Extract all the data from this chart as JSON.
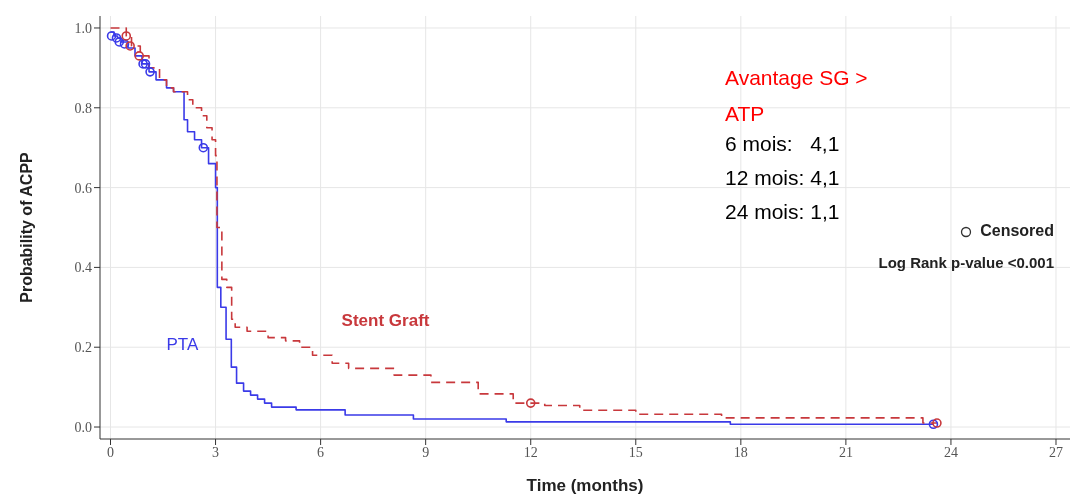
{
  "chart_data": {
    "type": "step",
    "xlabel": "Time (months)",
    "ylabel": "Probability of ACPP",
    "xlim": [
      -0.3,
      27.4
    ],
    "ylim": [
      -0.03,
      1.03
    ],
    "xticks": [
      0,
      3,
      6,
      9,
      12,
      15,
      18,
      21,
      24,
      27
    ],
    "yticks": [
      {
        "value": 0,
        "label": "0.0"
      },
      {
        "value": 0.2,
        "label": "0.2"
      },
      {
        "value": 0.4,
        "label": "0.4"
      },
      {
        "value": 0.6,
        "label": "0.6"
      },
      {
        "value": 0.8,
        "label": "0.8"
      },
      {
        "value": 1,
        "label": "1.0"
      }
    ],
    "grid": true,
    "series": [
      {
        "name": "PTA",
        "color": "#3a3ae8",
        "line_style": "solid",
        "x": [
          0,
          0.1,
          0.2,
          0.3,
          0.5,
          0.7,
          0.9,
          1.1,
          1.3,
          1.6,
          1.8,
          2.1,
          2.2,
          2.4,
          2.6,
          2.8,
          3.0,
          3.05,
          3.15,
          3.3,
          3.45,
          3.6,
          3.8,
          4.0,
          4.2,
          4.4,
          4.6,
          5.3,
          6.7,
          8.65,
          11.3,
          17.7,
          23.5
        ],
        "values": [
          0.99,
          0.98,
          0.975,
          0.965,
          0.95,
          0.93,
          0.91,
          0.89,
          0.87,
          0.85,
          0.84,
          0.77,
          0.74,
          0.72,
          0.7,
          0.66,
          0.6,
          0.35,
          0.3,
          0.22,
          0.15,
          0.11,
          0.09,
          0.08,
          0.07,
          0.06,
          0.05,
          0.043,
          0.03,
          0.02,
          0.013,
          0.007,
          0.007
        ]
      },
      {
        "name": "Stent Graft",
        "color": "#c8383c",
        "line_style": "dashed",
        "x": [
          0,
          0.45,
          0.6,
          0.85,
          1.1,
          1.4,
          1.6,
          1.8,
          2.2,
          2.35,
          2.6,
          2.75,
          2.9,
          3.0,
          3.04,
          3.18,
          3.32,
          3.46,
          3.56,
          3.9,
          4.5,
          5.0,
          5.4,
          5.77,
          6.33,
          6.8,
          8.1,
          9.15,
          10.5,
          11.5,
          12.4,
          13.4,
          15.0,
          17.45,
          23.2,
          23.6
        ],
        "values": [
          1.0,
          0.98,
          0.955,
          0.93,
          0.9,
          0.87,
          0.85,
          0.84,
          0.82,
          0.8,
          0.78,
          0.75,
          0.72,
          0.68,
          0.5,
          0.37,
          0.35,
          0.27,
          0.25,
          0.24,
          0.224,
          0.216,
          0.2,
          0.18,
          0.16,
          0.147,
          0.13,
          0.112,
          0.083,
          0.06,
          0.054,
          0.042,
          0.032,
          0.023,
          0.01,
          0.01
        ]
      },
      {
        "type": "scatter",
        "color": "#3a3ae8",
        "marker": "circle",
        "x": [
          0.03,
          0.17,
          0.25,
          0.4,
          0.93,
          1.0,
          1.13,
          2.65,
          23.5
        ],
        "values": [
          0.98,
          0.975,
          0.965,
          0.96,
          0.91,
          0.91,
          0.89,
          0.7,
          0.007
        ]
      },
      {
        "type": "scatter",
        "color": "#c8383c",
        "marker": "circle",
        "x": [
          0.45,
          0.56,
          0.82,
          12.0,
          23.6
        ],
        "values": [
          0.98,
          0.955,
          0.93,
          0.06,
          0.01
        ]
      }
    ],
    "annotations": [
      "Avantage SG > ATP",
      "6 mois:   4,1",
      "12 mois: 4,1",
      "24 mois: 1,1",
      "Censored",
      "Log Rank p-value <0.001"
    ]
  }
}
